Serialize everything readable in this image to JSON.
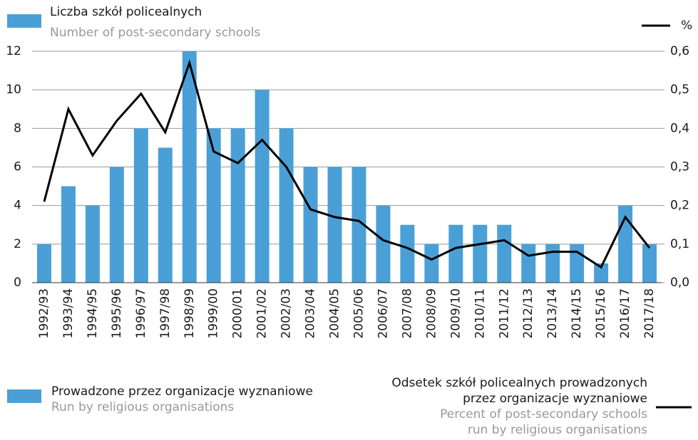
{
  "chart_data": {
    "type": "bar_line",
    "title": "Liczba szkół policealnych",
    "subtitle": "Number of post-secondary schools",
    "y2label": "%",
    "categories": [
      "1992/93",
      "1993/94",
      "1994/95",
      "1995/96",
      "1996/97",
      "1997/98",
      "1998/99",
      "1999/00",
      "2000/01",
      "2001/02",
      "2002/03",
      "2003/04",
      "2004/05",
      "2005/06",
      "2006/07",
      "2007/08",
      "2008/09",
      "2009/10",
      "2010/11",
      "2011/12",
      "2012/13",
      "2013/14",
      "2014/15",
      "2015/16",
      "2016/17",
      "2017/18"
    ],
    "series": [
      {
        "name": [
          "Prowadzone przez organizacje wyznaniowe"
        ],
        "name_en": [
          "Run by religious organisations"
        ],
        "type": "bar",
        "color": "#4aa0d6",
        "values": [
          2,
          5,
          4,
          6,
          8,
          7,
          12,
          8,
          8,
          10,
          8,
          6,
          6,
          6,
          4,
          3,
          2,
          3,
          3,
          3,
          2,
          2,
          2,
          1,
          4,
          2
        ]
      },
      {
        "name": [
          "Odsetek szkół policealnych prowadzonych",
          "przez organizacje wyznaniowe"
        ],
        "name_en": [
          "Percent of post-secondary schools",
          "run by religious organisations"
        ],
        "type": "line",
        "axis": "y2",
        "color": "#000000",
        "values": [
          0.21,
          0.45,
          0.33,
          0.42,
          0.49,
          0.39,
          0.57,
          0.34,
          0.31,
          0.37,
          0.3,
          0.19,
          0.17,
          0.16,
          0.11,
          0.09,
          0.06,
          0.09,
          0.1,
          0.11,
          0.07,
          0.08,
          0.08,
          0.04,
          0.17,
          0.09
        ]
      }
    ],
    "ylim": [
      0,
      12
    ],
    "yticks": [
      0,
      2,
      4,
      6,
      8,
      10,
      12
    ],
    "y2lim": [
      0,
      0.6
    ],
    "y2ticks": [
      {
        "value": 0,
        "label": "0,0"
      },
      {
        "value": 0.1,
        "label": "0,1"
      },
      {
        "value": 0.2,
        "label": "0,2"
      },
      {
        "value": 0.3,
        "label": "0,3"
      },
      {
        "value": 0.4,
        "label": "0,4"
      },
      {
        "value": 0.5,
        "label": "0,5"
      },
      {
        "value": 0.6,
        "label": "0,6"
      }
    ],
    "grid": true
  }
}
